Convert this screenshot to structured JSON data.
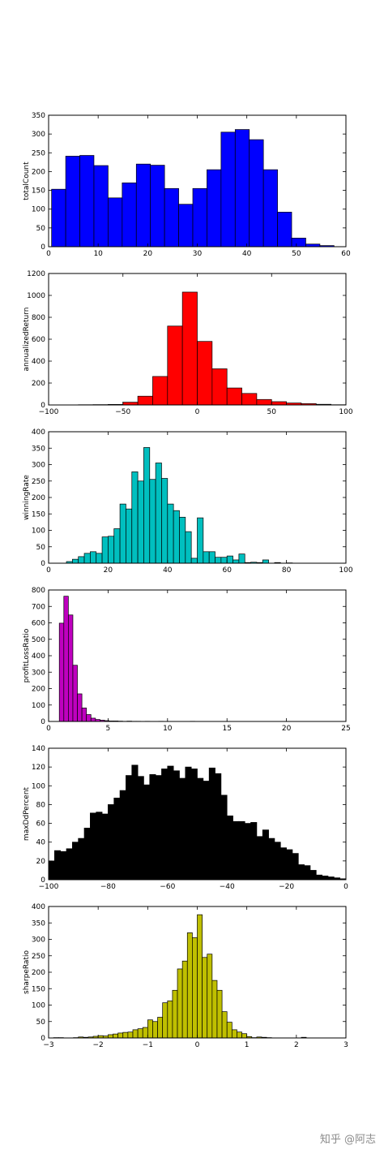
{
  "watermark": "知乎 @阿志",
  "chart_data": [
    {
      "type": "bar",
      "ylabel": "totalCount",
      "color": "#0000ff",
      "xlim": [
        0,
        60
      ],
      "ylim": [
        0,
        350
      ],
      "xticks": [
        0,
        10,
        20,
        30,
        40,
        50,
        60
      ],
      "xtick_labels": [
        "0",
        "10",
        "20",
        "30",
        "40",
        "50",
        "60"
      ],
      "yticks": [
        0,
        50,
        100,
        150,
        200,
        250,
        300,
        350
      ],
      "ytick_labels": [
        "0",
        "50",
        "100",
        "150",
        "200",
        "250",
        "300",
        "350"
      ],
      "bin_start": 0.6,
      "bin_width": 2.85,
      "values": [
        153,
        241,
        243,
        216,
        130,
        170,
        220,
        217,
        155,
        113,
        155,
        205,
        305,
        312,
        285,
        205,
        92,
        23,
        7,
        3
      ]
    },
    {
      "type": "bar",
      "ylabel": "annualizedReturn",
      "color": "#ff0000",
      "xlim": [
        -100,
        100
      ],
      "ylim": [
        0,
        1200
      ],
      "xticks": [
        -100,
        -50,
        0,
        50,
        100
      ],
      "xtick_labels": [
        "−100",
        "−50",
        "0",
        "50",
        "100"
      ],
      "yticks": [
        0,
        200,
        400,
        600,
        800,
        1000,
        1200
      ],
      "ytick_labels": [
        "0",
        "200",
        "400",
        "600",
        "800",
        "1000",
        "1200"
      ],
      "bin_start": -100,
      "bin_width": 10,
      "values": [
        0,
        1,
        2,
        3,
        5,
        25,
        80,
        260,
        720,
        1030,
        580,
        330,
        155,
        105,
        50,
        30,
        18,
        12,
        6,
        2
      ]
    },
    {
      "type": "bar",
      "ylabel": "winningRate",
      "color": "#00bfbf",
      "xlim": [
        0,
        100
      ],
      "ylim": [
        0,
        400
      ],
      "xticks": [
        0,
        20,
        40,
        60,
        80,
        100
      ],
      "xtick_labels": [
        "0",
        "20",
        "40",
        "60",
        "80",
        "100"
      ],
      "yticks": [
        0,
        50,
        100,
        150,
        200,
        250,
        300,
        350,
        400
      ],
      "ytick_labels": [
        "0",
        "50",
        "100",
        "150",
        "200",
        "250",
        "300",
        "350",
        "400"
      ],
      "bin_start": 6,
      "bin_width": 2,
      "values": [
        5,
        12,
        20,
        30,
        35,
        30,
        80,
        82,
        105,
        180,
        165,
        278,
        250,
        352,
        255,
        305,
        258,
        180,
        160,
        140,
        96,
        15,
        138,
        35,
        35,
        18,
        18,
        22,
        10,
        28,
        2,
        3,
        2,
        10,
        0,
        2,
        0,
        1,
        0,
        0,
        0,
        0
      ]
    },
    {
      "type": "bar",
      "ylabel": "profitLossRatio",
      "color": "#bf00bf",
      "xlim": [
        0,
        25
      ],
      "ylim": [
        0,
        800
      ],
      "xticks": [
        0,
        5,
        10,
        15,
        20,
        25
      ],
      "xtick_labels": [
        "0",
        "5",
        "10",
        "15",
        "20",
        "25"
      ],
      "yticks": [
        0,
        100,
        200,
        300,
        400,
        500,
        600,
        700,
        800
      ],
      "ytick_labels": [
        "0",
        "100",
        "200",
        "300",
        "400",
        "500",
        "600",
        "700",
        "800"
      ],
      "bin_start": 0.9,
      "bin_width": 0.38,
      "values": [
        598,
        762,
        648,
        342,
        168,
        82,
        42,
        20,
        12,
        8,
        5,
        3,
        3,
        2,
        1,
        2,
        1,
        1,
        0,
        1,
        0,
        0,
        1,
        0,
        0,
        0,
        0,
        0,
        0,
        1,
        0,
        0,
        0,
        0,
        0,
        0,
        0,
        0,
        0,
        0,
        0,
        0,
        0,
        0,
        0,
        0,
        0,
        0,
        0,
        0,
        0,
        0,
        0,
        0,
        0,
        0,
        0,
        0,
        0,
        0
      ]
    },
    {
      "type": "bar",
      "ylabel": "maxDdPercent",
      "color": "#000000",
      "xlim": [
        -100,
        0
      ],
      "ylim": [
        0,
        140
      ],
      "xticks": [
        -100,
        -80,
        -60,
        -40,
        -20,
        0
      ],
      "xtick_labels": [
        "−100",
        "−80",
        "−60",
        "−40",
        "−20",
        "0"
      ],
      "yticks": [
        0,
        20,
        40,
        60,
        80,
        100,
        120,
        140
      ],
      "ytick_labels": [
        "0",
        "20",
        "40",
        "60",
        "80",
        "100",
        "120",
        "140"
      ],
      "bin_start": -100,
      "bin_width": 2,
      "values": [
        20,
        31,
        30,
        33,
        40,
        44,
        55,
        71,
        72,
        70,
        80,
        87,
        95,
        111,
        122,
        110,
        101,
        112,
        111,
        118,
        121,
        116,
        108,
        120,
        118,
        108,
        105,
        119,
        113,
        90,
        68,
        62,
        62,
        60,
        61,
        46,
        53,
        44,
        40,
        34,
        32,
        28,
        16,
        15,
        10,
        5,
        4,
        3,
        2,
        1
      ]
    },
    {
      "type": "bar",
      "ylabel": "sharpeRatio",
      "color": "#bfbf00",
      "xlim": [
        -3,
        3
      ],
      "ylim": [
        0,
        400
      ],
      "xticks": [
        -3,
        -2,
        -1,
        0,
        1,
        2,
        3
      ],
      "xtick_labels": [
        "−3",
        "−2",
        "−1",
        "0",
        "1",
        "2",
        "3"
      ],
      "yticks": [
        0,
        50,
        100,
        150,
        200,
        250,
        300,
        350,
        400
      ],
      "ytick_labels": [
        "0",
        "50",
        "100",
        "150",
        "200",
        "250",
        "300",
        "350",
        "400"
      ],
      "bin_start": -3,
      "bin_width": 0.1,
      "values": [
        0,
        1,
        1,
        0,
        0,
        1,
        3,
        2,
        3,
        5,
        7,
        6,
        10,
        12,
        15,
        17,
        18,
        25,
        28,
        32,
        55,
        50,
        63,
        107,
        113,
        145,
        210,
        234,
        320,
        305,
        375,
        245,
        255,
        175,
        145,
        80,
        48,
        25,
        18,
        13,
        4,
        1,
        3,
        2,
        1,
        0,
        0,
        0,
        0,
        0,
        0,
        2,
        0,
        0,
        0,
        0,
        0,
        0,
        0,
        0
      ]
    }
  ]
}
